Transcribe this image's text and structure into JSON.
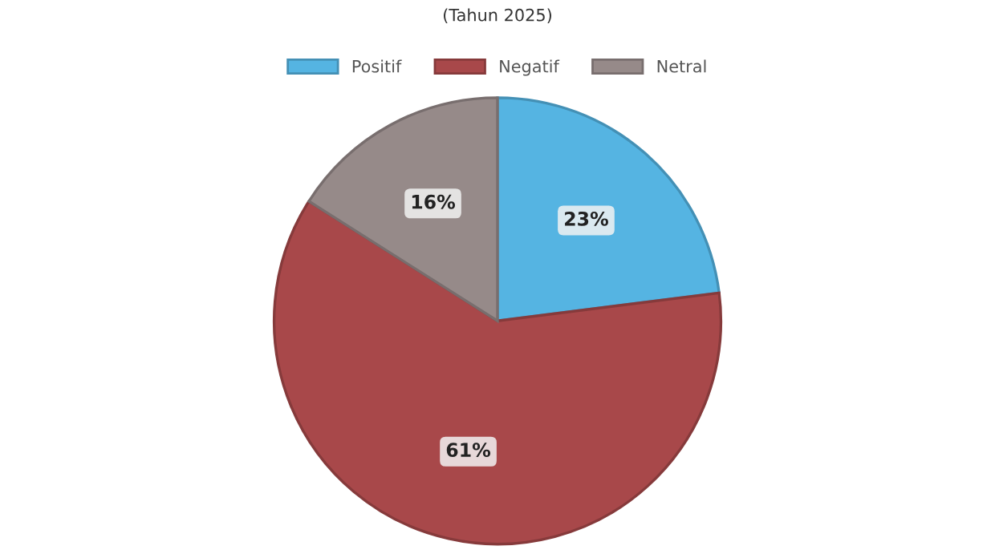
{
  "chart_data": {
    "type": "pie",
    "subtitle": "(Tahun 2025)",
    "categories": [
      "Positif",
      "Negatif",
      "Netral"
    ],
    "values": [
      23,
      61,
      16
    ],
    "colors": [
      "#55b4e2",
      "#a8484a",
      "#968a89"
    ],
    "value_labels": [
      "23%",
      "61%",
      "16%"
    ],
    "legend": "top"
  }
}
